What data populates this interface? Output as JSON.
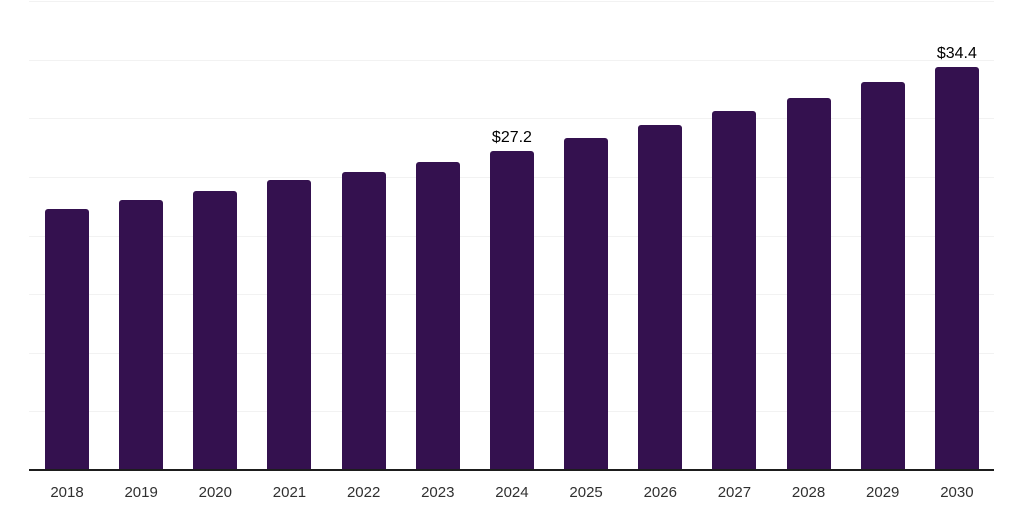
{
  "chart_data": {
    "type": "bar",
    "title": "",
    "xlabel": "",
    "ylabel": "",
    "categories": [
      "2018",
      "2019",
      "2020",
      "2021",
      "2022",
      "2023",
      "2024",
      "2025",
      "2026",
      "2027",
      "2028",
      "2029",
      "2030"
    ],
    "values": [
      22.3,
      23.0,
      23.8,
      24.7,
      25.4,
      26.3,
      27.2,
      28.3,
      29.4,
      30.6,
      31.7,
      33.1,
      34.4
    ],
    "value_labels": [
      null,
      null,
      null,
      null,
      null,
      null,
      "$27.2",
      null,
      null,
      null,
      null,
      null,
      "$34.4"
    ],
    "ylim": [
      0,
      40
    ],
    "gridline_values": [
      5,
      10,
      15,
      20,
      25,
      30,
      35,
      40
    ],
    "grid": "horizontal",
    "legend": "none",
    "bar_color": "#34114f",
    "gridline_color": "#f2f2f2",
    "axis_line_color": "#1d1d1d",
    "value_label_color": "#000000",
    "tick_label_color": "#303030"
  }
}
